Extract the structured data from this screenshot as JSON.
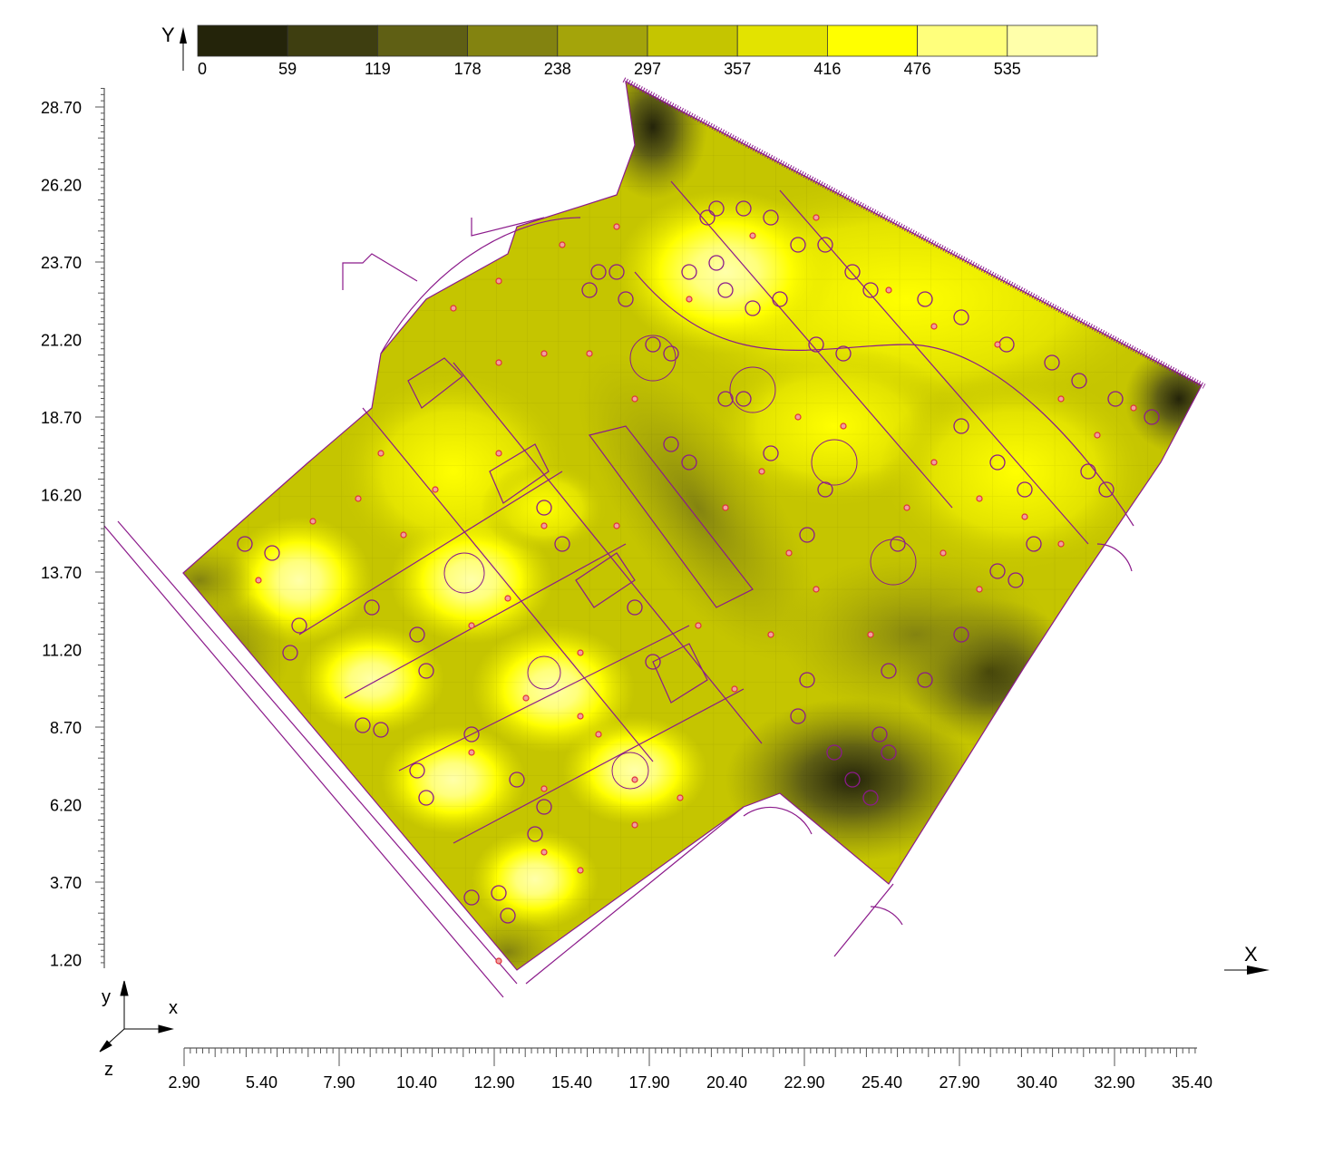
{
  "legend": {
    "axis_label": "Y",
    "ticks": [
      "0",
      "59",
      "119",
      "178",
      "238",
      "297",
      "357",
      "416",
      "476",
      "535"
    ],
    "colors": [
      "#24240a",
      "#3e3e10",
      "#5f5f14",
      "#838310",
      "#a4a40a",
      "#c5c500",
      "#e3e300",
      "#ffff00",
      "#ffff7c",
      "#ffffaa"
    ]
  },
  "y_axis": {
    "ticks": [
      "28.70",
      "26.20",
      "23.70",
      "21.20",
      "18.70",
      "16.20",
      "13.70",
      "11.20",
      "8.70",
      "6.20",
      "3.70",
      "1.20"
    ]
  },
  "x_axis": {
    "label": "X",
    "ticks": [
      "2.90",
      "5.40",
      "7.90",
      "10.40",
      "12.90",
      "15.40",
      "17.90",
      "20.40",
      "22.90",
      "25.40",
      "27.90",
      "30.40",
      "32.90",
      "35.40"
    ]
  },
  "triad": {
    "y": "y",
    "x": "x",
    "z": "z"
  },
  "plan_line_color": "#8b1a8b",
  "luminaire_color": "#e0303a"
}
